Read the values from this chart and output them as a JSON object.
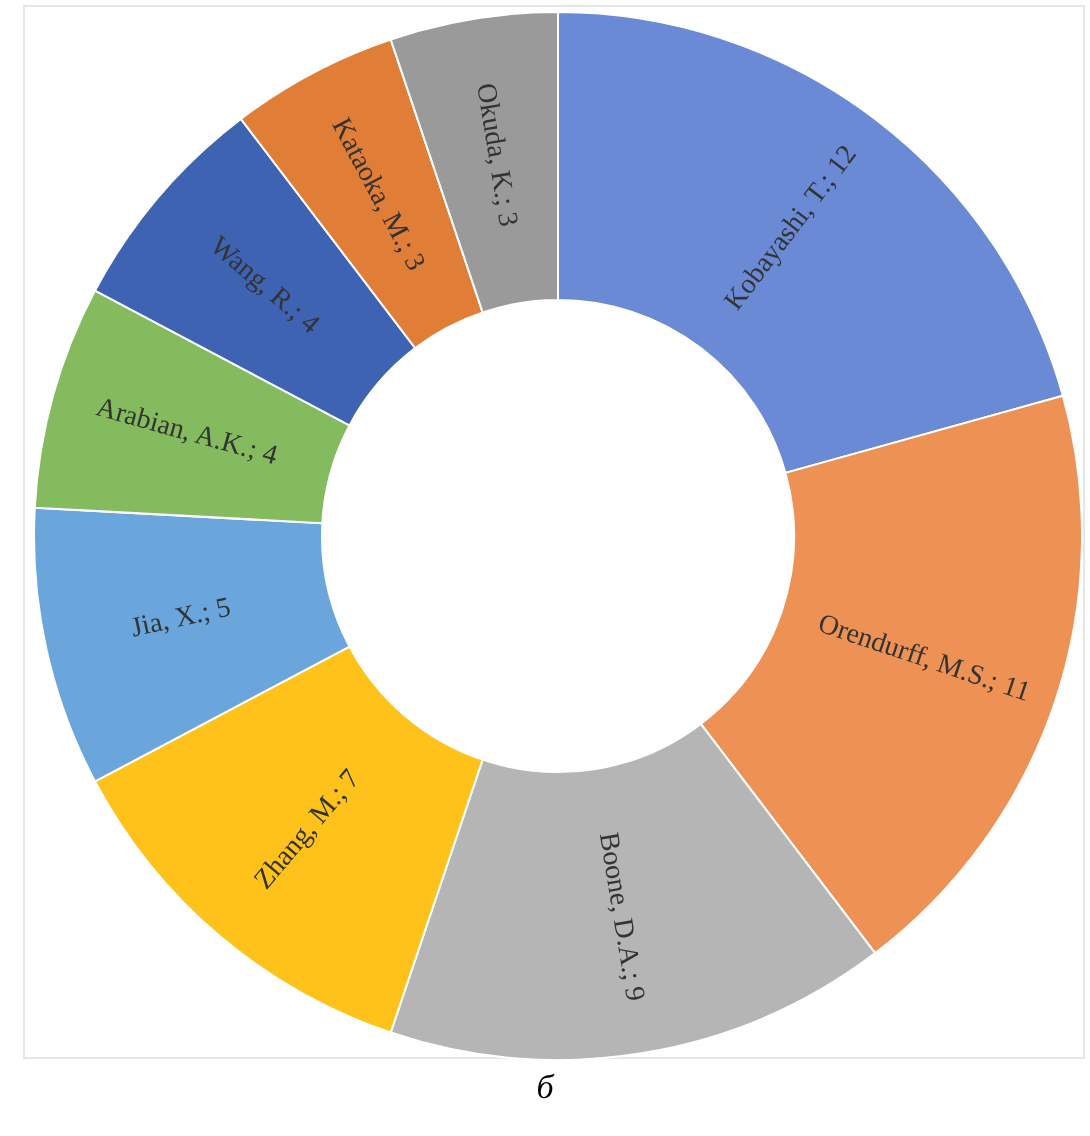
{
  "chart_data": {
    "type": "donut",
    "categories": [
      "Kobayashi, T.",
      "Orendurff, M.S.",
      "Boone, D.A.",
      "Zhang, M.",
      "Jia, X.",
      "Arabian, A.K.",
      "Wang, R.",
      "Kataoka, M.",
      "Okuda, K."
    ],
    "values": [
      12,
      11,
      9,
      7,
      5,
      4,
      4,
      3,
      3
    ],
    "colors": [
      "#6a8ad6",
      "#ee9155",
      "#b5b5b5",
      "#ffc21a",
      "#6aa6db",
      "#84bb5f",
      "#3f63b3",
      "#e07d36",
      "#9a9a9a"
    ],
    "value_labels": [
      "; 12",
      "; 11",
      "; 9",
      "; 7",
      "; 5",
      "; 4",
      "; 4",
      "; 3",
      "; 3"
    ],
    "legend": false,
    "annotations": [
      "б"
    ]
  }
}
